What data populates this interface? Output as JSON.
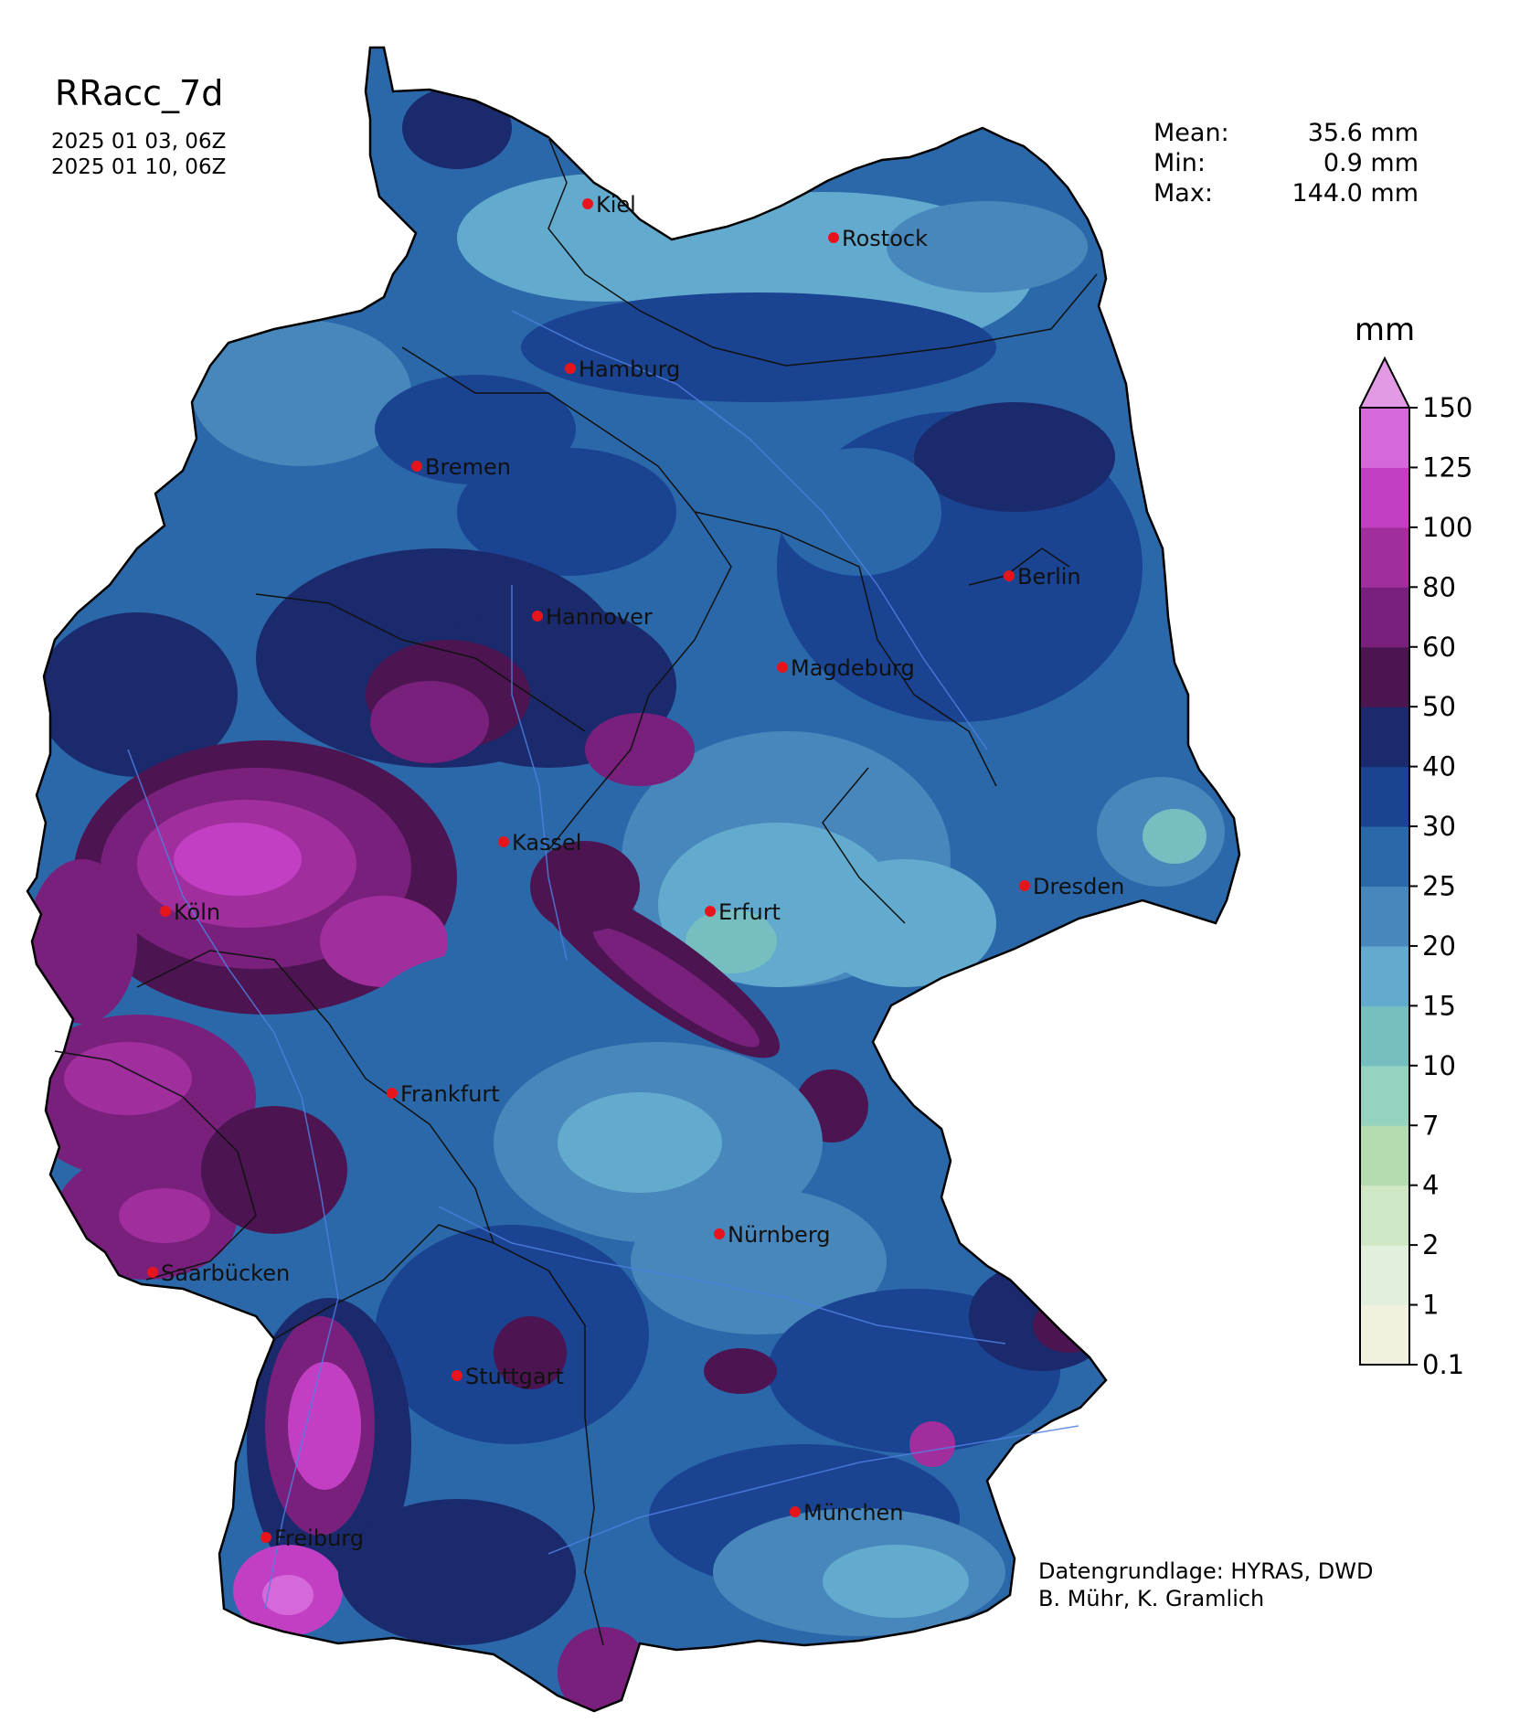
{
  "header": {
    "title": "RRacc_7d",
    "date_start": "2025 01 03, 06Z",
    "date_end": "2025 01 10, 06Z"
  },
  "stats": [
    {
      "label": "Mean:",
      "value": "35.6 mm"
    },
    {
      "label": "Min:",
      "value": "0.9 mm"
    },
    {
      "label": "Max:",
      "value": "144.0 mm"
    }
  ],
  "colorbar": {
    "unit": "mm",
    "ticks": [
      "0.1",
      "1",
      "2",
      "4",
      "7",
      "10",
      "15",
      "20",
      "25",
      "30",
      "40",
      "50",
      "60",
      "80",
      "100",
      "125",
      "150"
    ],
    "colors": [
      "#f2f0df",
      "#e2efdc",
      "#cfe7c4",
      "#b4dcb1",
      "#96d2c0",
      "#76bec0",
      "#63abce",
      "#4787bb",
      "#2b68aa",
      "#1a4391",
      "#1b2a6c",
      "#4c1552",
      "#79207d",
      "#a12e9d",
      "#c23fc4",
      "#d569d9"
    ],
    "extend_color": "#e29ae4"
  },
  "cities": [
    {
      "name": "Kiel"
    },
    {
      "name": "Rostock"
    },
    {
      "name": "Hamburg"
    },
    {
      "name": "Bremen"
    },
    {
      "name": "Berlin"
    },
    {
      "name": "Hannover"
    },
    {
      "name": "Magdeburg"
    },
    {
      "name": "Kassel"
    },
    {
      "name": "Dresden"
    },
    {
      "name": "Köln"
    },
    {
      "name": "Erfurt"
    },
    {
      "name": "Frankfurt"
    },
    {
      "name": "Nürnberg"
    },
    {
      "name": "Saarbücken"
    },
    {
      "name": "Stuttgart"
    },
    {
      "name": "München"
    },
    {
      "name": "Freiburg"
    }
  ],
  "credit": {
    "line1": "Datengrundlage: HYRAS, DWD",
    "line2": "B. Mühr, K. Gramlich"
  },
  "colors": {
    "base_precip": "#2b68aa",
    "city_dot": "#e8141b"
  }
}
